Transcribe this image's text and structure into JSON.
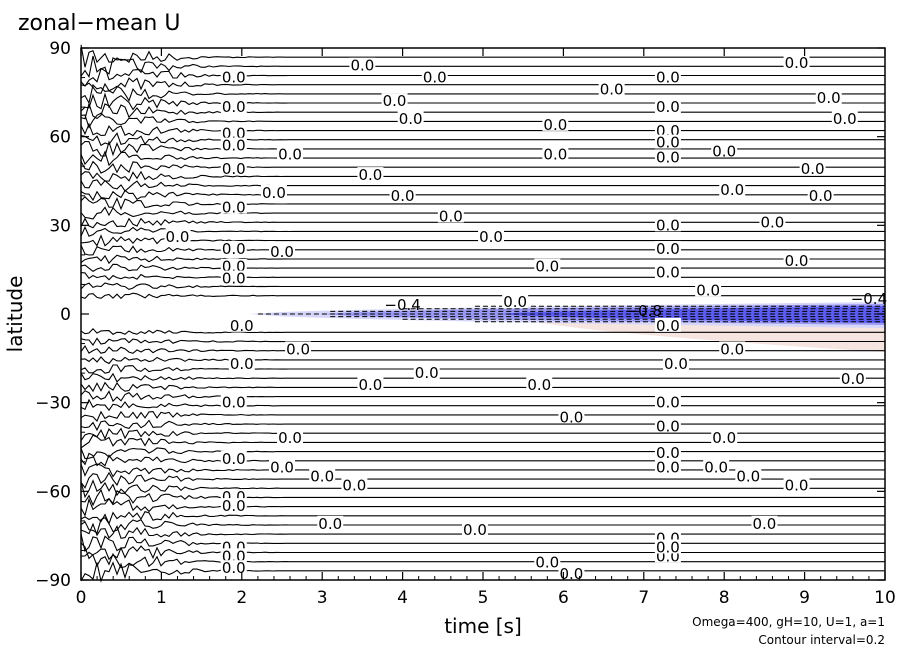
{
  "chart_data": {
    "type": "heatmap",
    "title": "zonal−mean U",
    "xlabel": "time [s]",
    "ylabel": "latitude",
    "xlim": [
      0,
      10
    ],
    "ylim": [
      -90,
      90
    ],
    "x_ticks": [
      0,
      1,
      2,
      3,
      4,
      5,
      6,
      7,
      8,
      9,
      10
    ],
    "x_tick_labels": [
      "0",
      "1",
      "2",
      "3",
      "4",
      "5",
      "6",
      "7",
      "8",
      "9",
      "10"
    ],
    "y_ticks": [
      90,
      60,
      30,
      0,
      -30,
      -60,
      -90
    ],
    "y_tick_labels": [
      "90",
      "60",
      "30",
      "0",
      "−30",
      "−60",
      "−90"
    ],
    "annotations": [
      "Omega=400, gH=10, U=1, a=1",
      "Contour interval=0.2"
    ],
    "contour_interval": 0.2,
    "contour_labels": [
      "0.0",
      "−0.4",
      "−0.8",
      "−0.4"
    ],
    "contour_label_value": "0.0",
    "colors": {
      "negative": "#5c5cf0",
      "negative_light": "#d6d6fa",
      "positive_light": "#f6e4e0"
    },
    "x": [
      0,
      1,
      2,
      3,
      4,
      5,
      6,
      7,
      8,
      9,
      10
    ],
    "y": [
      90,
      60,
      30,
      0,
      -30,
      -60,
      -90
    ],
    "z": [
      [
        0,
        0,
        0,
        0,
        0,
        0,
        0,
        0,
        0,
        0,
        0
      ],
      [
        0,
        0,
        0,
        0,
        0,
        0,
        0,
        0,
        0,
        0,
        0
      ],
      [
        0,
        0,
        0,
        0,
        0,
        0,
        0,
        0,
        0,
        0,
        0
      ],
      [
        0,
        0,
        0,
        -0.1,
        -0.3,
        -0.45,
        -0.6,
        -0.75,
        -0.85,
        -0.9,
        -0.95
      ],
      [
        0,
        0,
        0,
        0,
        0,
        0,
        0,
        0,
        0,
        0,
        0
      ],
      [
        0,
        0,
        0,
        0,
        0,
        0,
        0,
        0,
        0,
        0,
        0
      ],
      [
        0,
        0,
        0,
        0,
        0,
        0,
        0,
        0,
        0,
        0,
        0
      ]
    ]
  }
}
